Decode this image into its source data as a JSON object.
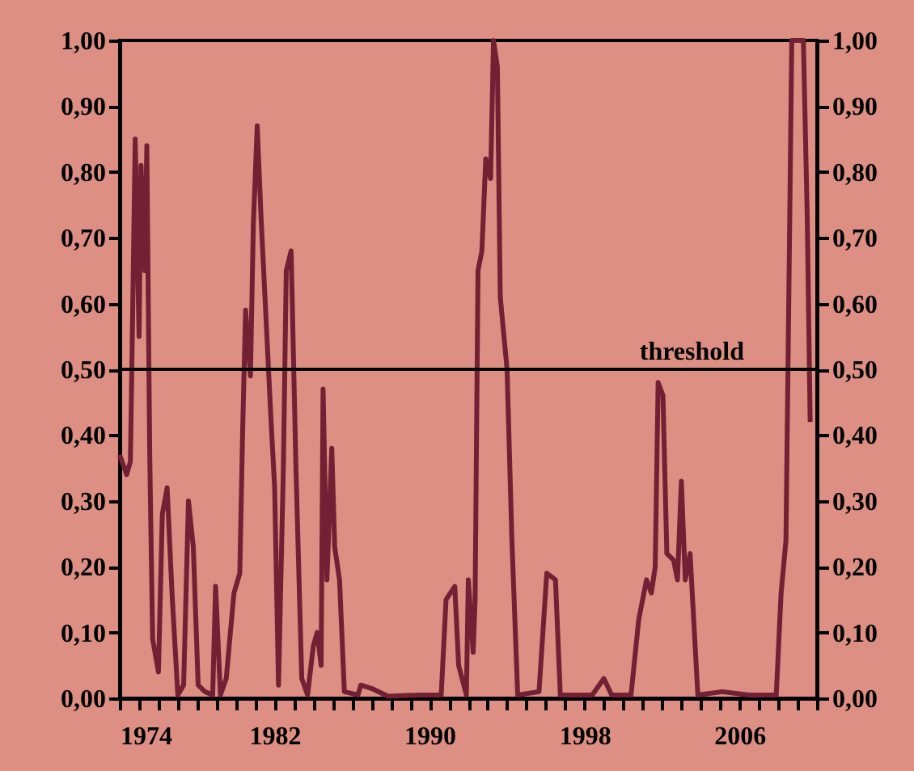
{
  "chart_data": {
    "type": "line",
    "x": [
      1974.0,
      1974.36,
      1974.55,
      1974.6,
      1974.8,
      1975.0,
      1975.1,
      1975.3,
      1975.4,
      1975.55,
      1975.7,
      1976.0,
      1976.2,
      1976.45,
      1976.7,
      1977.0,
      1977.3,
      1977.55,
      1977.8,
      1978.05,
      1978.4,
      1978.8,
      1978.95,
      1979.2,
      1979.5,
      1979.9,
      1980.2,
      1980.35,
      1980.5,
      1980.75,
      1980.9,
      1981.1,
      1981.3,
      1981.6,
      1981.8,
      1982.0,
      1982.2,
      1982.45,
      1982.6,
      1982.85,
      1983.1,
      1983.4,
      1983.7,
      1984.0,
      1984.2,
      1984.4,
      1984.5,
      1984.7,
      1984.95,
      1985.1,
      1985.35,
      1985.6,
      1986.3,
      1986.45,
      1987.0,
      1987.85,
      1989.5,
      1990.6,
      1990.85,
      1991.3,
      1991.5,
      1991.9,
      1992.0,
      1992.25,
      1992.35,
      1992.5,
      1992.7,
      1992.9,
      1993.15,
      1993.3,
      1993.5,
      1993.65,
      1994.0,
      1994.25,
      1994.55,
      1995.65,
      1996.05,
      1996.5,
      1996.75,
      1998.4,
      1999.0,
      1999.4,
      2000.4,
      2000.8,
      2001.2,
      2001.45,
      2001.65,
      2001.8,
      2002.05,
      2002.25,
      2002.6,
      2002.8,
      2003.0,
      2003.2,
      2003.45,
      2003.85,
      2005.1,
      2006.5,
      2007.9,
      2008.15,
      2008.4,
      2008.6,
      2008.7,
      2009.3,
      2009.5,
      2009.65
    ],
    "series": [
      {
        "color": "#722033",
        "values": [
          0.37,
          0.34,
          0.36,
          0.45,
          0.85,
          0.55,
          0.81,
          0.65,
          0.84,
          0.37,
          0.09,
          0.04,
          0.28,
          0.32,
          0.16,
          0.005,
          0.02,
          0.3,
          0.23,
          0.02,
          0.01,
          0.005,
          0.17,
          0.005,
          0.03,
          0.16,
          0.19,
          0.41,
          0.59,
          0.49,
          0.72,
          0.87,
          0.73,
          0.55,
          0.43,
          0.32,
          0.02,
          0.35,
          0.65,
          0.68,
          0.35,
          0.03,
          0.005,
          0.08,
          0.1,
          0.05,
          0.47,
          0.18,
          0.38,
          0.23,
          0.18,
          0.01,
          0.005,
          0.02,
          0.015,
          0.003,
          0.005,
          0.005,
          0.15,
          0.17,
          0.05,
          0.005,
          0.18,
          0.07,
          0.15,
          0.65,
          0.68,
          0.82,
          0.79,
          1.0,
          0.96,
          0.61,
          0.5,
          0.24,
          0.005,
          0.01,
          0.19,
          0.18,
          0.005,
          0.005,
          0.03,
          0.005,
          0.005,
          0.12,
          0.18,
          0.16,
          0.2,
          0.48,
          0.46,
          0.22,
          0.21,
          0.18,
          0.33,
          0.18,
          0.22,
          0.005,
          0.01,
          0.005,
          0.005,
          0.16,
          0.24,
          0.74,
          1.0,
          1.0,
          0.73,
          0.42
        ]
      }
    ],
    "xlim": [
      1974,
      2010
    ],
    "xticks": [
      1974,
      {
        "value": 1975,
        "label": null
      },
      {
        "value": 1976,
        "label": null
      },
      {
        "value": 1977,
        "label": null
      },
      {
        "value": 1978,
        "label": null
      },
      {
        "value": 1979,
        "label": null
      },
      {
        "value": 1980,
        "label": null
      },
      {
        "value": 1981,
        "label": null
      },
      1982,
      {
        "value": 1983,
        "label": null
      },
      {
        "value": 1984,
        "label": null
      },
      {
        "value": 1985,
        "label": null
      },
      {
        "value": 1986,
        "label": null
      },
      {
        "value": 1987,
        "label": null
      },
      {
        "value": 1988,
        "label": null
      },
      {
        "value": 1989,
        "label": null
      },
      1990,
      {
        "value": 1991,
        "label": null
      },
      {
        "value": 1992,
        "label": null
      },
      {
        "value": 1993,
        "label": null
      },
      {
        "value": 1994,
        "label": null
      },
      {
        "value": 1995,
        "label": null
      },
      {
        "value": 1996,
        "label": null
      },
      {
        "value": 1997,
        "label": null
      },
      1998,
      {
        "value": 1999,
        "label": null
      },
      {
        "value": 2000,
        "label": null
      },
      {
        "value": 2001,
        "label": null
      },
      {
        "value": 2002,
        "label": null
      },
      {
        "value": 2003,
        "label": null
      },
      {
        "value": 2004,
        "label": null
      },
      {
        "value": 2005,
        "label": null
      },
      2006,
      {
        "value": 2007,
        "label": null
      },
      {
        "value": 2008,
        "label": null
      },
      {
        "value": 2009,
        "label": null
      },
      {
        "value": 2010,
        "label": null
      }
    ],
    "ylim": [
      0,
      1
    ],
    "yticks": [
      {
        "value": 0,
        "label": "0,00"
      },
      {
        "value": 0.1,
        "label": "0,10"
      },
      {
        "value": 0.2,
        "label": "0,20"
      },
      {
        "value": 0.3,
        "label": "0,30"
      },
      {
        "value": 0.4,
        "label": "0,40"
      },
      {
        "value": 0.5,
        "label": "0,50"
      },
      {
        "value": 0.6,
        "label": "0,60"
      },
      {
        "value": 0.7,
        "label": "0,70"
      },
      {
        "value": 0.8,
        "label": "0,80"
      },
      {
        "value": 0.9,
        "label": "0,90"
      },
      {
        "value": 1,
        "label": "1,00"
      }
    ],
    "y2lim": [
      0,
      1
    ],
    "y2ticks": [
      {
        "value": 0,
        "label": "0,00"
      },
      {
        "value": 0.1,
        "label": "0,10"
      },
      {
        "value": 0.2,
        "label": "0,20"
      },
      {
        "value": 0.3,
        "label": "0,30"
      },
      {
        "value": 0.4,
        "label": "0,40"
      },
      {
        "value": 0.5,
        "label": "0,50"
      },
      {
        "value": 0.6,
        "label": "0,60"
      },
      {
        "value": 0.7,
        "label": "0,70"
      },
      {
        "value": 0.8,
        "label": "0,80"
      },
      {
        "value": 0.9,
        "label": "0,90"
      },
      {
        "value": 1,
        "label": "1,00"
      }
    ],
    "ref_lines": [
      {
        "axis": "y",
        "value": 0.5,
        "label": "threshold",
        "color": "#000000"
      }
    ],
    "grid": false,
    "marker": "none",
    "line_style": "solid"
  }
}
